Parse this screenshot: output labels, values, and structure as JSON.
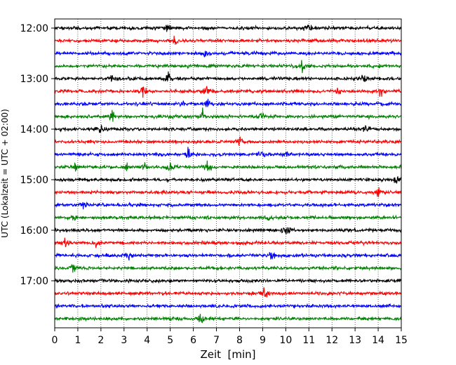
{
  "chart_data": {
    "type": "line",
    "title": "",
    "xlabel": "Zeit  [min]",
    "ylabel": "UTC (Lokalzeit = UTC + 02:00)",
    "xlim": [
      0,
      15
    ],
    "x_ticks": [
      "0",
      "1",
      "2",
      "3",
      "4",
      "5",
      "6",
      "7",
      "8",
      "9",
      "10",
      "11",
      "12",
      "13",
      "14",
      "15"
    ],
    "y_ticks": [
      "12:00",
      "13:00",
      "14:00",
      "15:00",
      "16:00",
      "17:00"
    ],
    "grid": "vertical dotted",
    "trace_interval_min": 15,
    "trace_colors": [
      "#000000",
      "#ff0000",
      "#0000ff",
      "#008000"
    ],
    "traces": [
      {
        "utc_start": "12:00",
        "color": "#000000",
        "events_min": [
          4.9,
          11.0
        ]
      },
      {
        "utc_start": "12:15",
        "color": "#ff0000",
        "events_min": [
          5.2
        ]
      },
      {
        "utc_start": "12:30",
        "color": "#0000ff",
        "events_min": [
          6.5
        ]
      },
      {
        "utc_start": "12:45",
        "color": "#008000",
        "events_min": [
          10.7
        ]
      },
      {
        "utc_start": "13:00",
        "color": "#000000",
        "events_min": [
          2.5,
          4.9,
          13.4
        ]
      },
      {
        "utc_start": "13:15",
        "color": "#ff0000",
        "events_min": [
          3.8,
          6.6,
          12.3,
          14.1
        ]
      },
      {
        "utc_start": "13:30",
        "color": "#0000ff",
        "events_min": [
          5.6,
          6.6
        ]
      },
      {
        "utc_start": "13:45",
        "color": "#008000",
        "events_min": [
          2.5,
          6.4,
          9.0
        ]
      },
      {
        "utc_start": "14:00",
        "color": "#000000",
        "events_min": [
          2.0,
          13.5
        ]
      },
      {
        "utc_start": "14:15",
        "color": "#ff0000",
        "events_min": [
          8.0
        ]
      },
      {
        "utc_start": "14:30",
        "color": "#0000ff",
        "events_min": [
          5.8,
          9.0,
          10.0
        ]
      },
      {
        "utc_start": "14:45",
        "color": "#008000",
        "events_min": [
          0.9,
          3.1,
          3.9,
          5.0,
          6.6
        ]
      },
      {
        "utc_start": "15:00",
        "color": "#000000",
        "events_min": [
          14.8
        ]
      },
      {
        "utc_start": "15:15",
        "color": "#ff0000",
        "events_min": [
          14.0
        ]
      },
      {
        "utc_start": "15:30",
        "color": "#0000ff",
        "events_min": [
          1.3
        ]
      },
      {
        "utc_start": "15:45",
        "color": "#008000",
        "events_min": [
          0.9,
          9.2
        ]
      },
      {
        "utc_start": "16:00",
        "color": "#000000",
        "events_min": [
          10.0
        ]
      },
      {
        "utc_start": "16:15",
        "color": "#ff0000",
        "events_min": [
          0.5,
          1.8
        ]
      },
      {
        "utc_start": "16:30",
        "color": "#0000ff",
        "events_min": [
          3.2,
          9.4
        ]
      },
      {
        "utc_start": "16:45",
        "color": "#008000",
        "events_min": [
          0.8
        ]
      },
      {
        "utc_start": "17:00",
        "color": "#000000",
        "events_min": []
      },
      {
        "utc_start": "17:15",
        "color": "#ff0000",
        "events_min": [
          9.1
        ]
      },
      {
        "utc_start": "17:30",
        "color": "#0000ff",
        "events_min": []
      },
      {
        "utc_start": "17:45",
        "color": "#008000",
        "events_min": [
          6.3
        ]
      }
    ]
  }
}
